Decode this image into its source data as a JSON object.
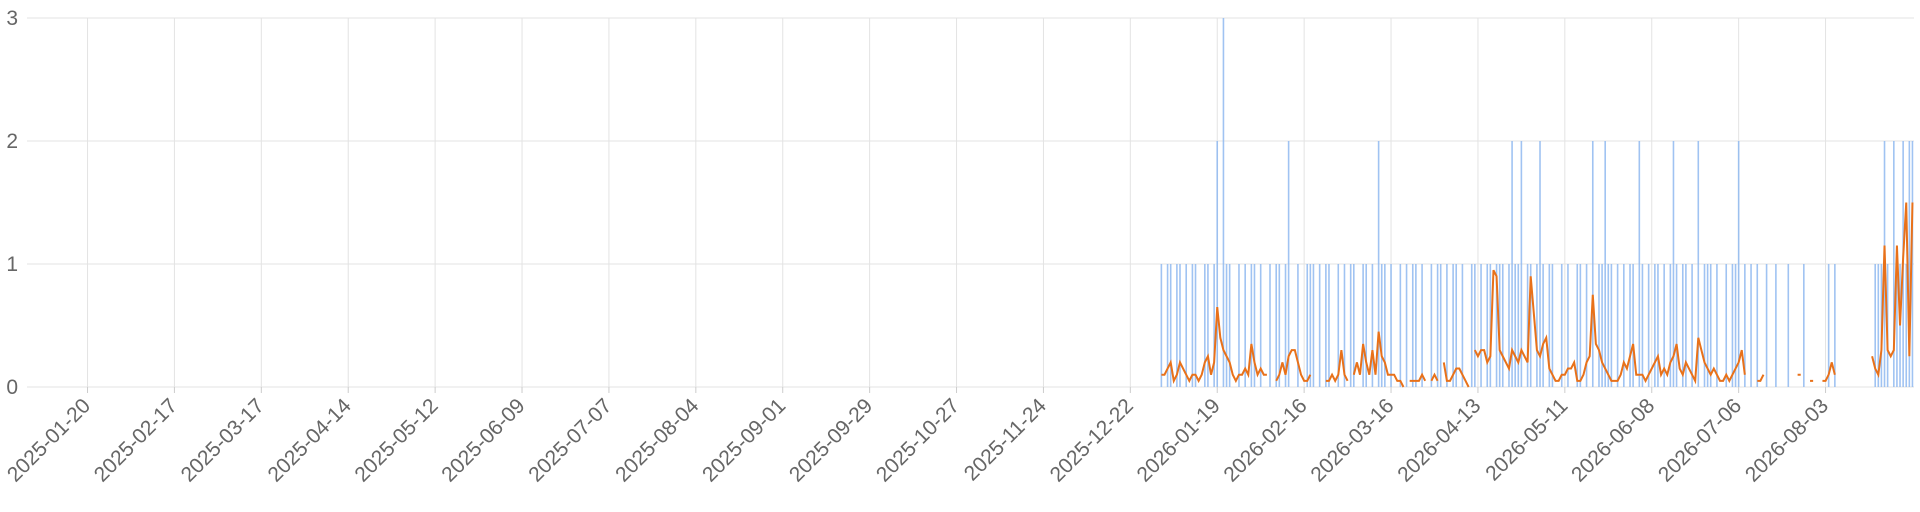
{
  "chart_data": {
    "type": "bar-line",
    "xlim": [
      "2025-01-01",
      "2026-08-31"
    ],
    "xticks": [
      "2025-01-20",
      "2025-02-17",
      "2025-03-17",
      "2025-04-14",
      "2025-05-12",
      "2025-06-09",
      "2025-07-07",
      "2025-08-04",
      "2025-09-01",
      "2025-09-29",
      "2025-10-27",
      "2025-11-24",
      "2025-12-22",
      "2026-01-19",
      "2026-02-16",
      "2026-03-16",
      "2026-04-13",
      "2026-05-11",
      "2026-06-08",
      "2026-07-06",
      "2026-08-03"
    ],
    "ylim": [
      0,
      3
    ],
    "yticks": [
      0,
      1,
      2,
      3
    ],
    "grid": true,
    "x": [
      "2025-12-30",
      "2025-12-31",
      "2026-01-01",
      "2026-01-02",
      "2026-01-03",
      "2026-01-04",
      "2026-01-05",
      "2026-01-06",
      "2026-01-07",
      "2026-01-08",
      "2026-01-09",
      "2026-01-10",
      "2026-01-11",
      "2026-01-12",
      "2026-01-13",
      "2026-01-14",
      "2026-01-15",
      "2026-01-16",
      "2026-01-17",
      "2026-01-18",
      "2026-01-19",
      "2026-01-20",
      "2026-01-21",
      "2026-01-22",
      "2026-01-23",
      "2026-01-24",
      "2026-01-25",
      "2026-01-26",
      "2026-01-27",
      "2026-01-28",
      "2026-01-29",
      "2026-01-30",
      "2026-01-31",
      "2026-02-01",
      "2026-02-02",
      "2026-02-03",
      "2026-02-04",
      "2026-02-05",
      "2026-02-06",
      "2026-02-07",
      "2026-02-08",
      "2026-02-09",
      "2026-02-10",
      "2026-02-11",
      "2026-02-12",
      "2026-02-13",
      "2026-02-14",
      "2026-02-15",
      "2026-02-16",
      "2026-02-17",
      "2026-02-18",
      "2026-02-19",
      "2026-02-20",
      "2026-02-21",
      "2026-02-22",
      "2026-02-23",
      "2026-02-24",
      "2026-02-25",
      "2026-02-26",
      "2026-02-27",
      "2026-02-28",
      "2026-03-01",
      "2026-03-02",
      "2026-03-03",
      "2026-03-04",
      "2026-03-05",
      "2026-03-06",
      "2026-03-07",
      "2026-03-08",
      "2026-03-09",
      "2026-03-10",
      "2026-03-11",
      "2026-03-12",
      "2026-03-13",
      "2026-03-14",
      "2026-03-15",
      "2026-03-16",
      "2026-03-17",
      "2026-03-18",
      "2026-03-19",
      "2026-03-20",
      "2026-03-21",
      "2026-03-22",
      "2026-03-23",
      "2026-03-24",
      "2026-03-25",
      "2026-03-26",
      "2026-03-27",
      "2026-03-28",
      "2026-03-29",
      "2026-03-30",
      "2026-03-31",
      "2026-04-01",
      "2026-04-02",
      "2026-04-03",
      "2026-04-04",
      "2026-04-05",
      "2026-04-06",
      "2026-04-07",
      "2026-04-08",
      "2026-04-09",
      "2026-04-10",
      "2026-04-11",
      "2026-04-12",
      "2026-04-13",
      "2026-04-14",
      "2026-04-15",
      "2026-04-16",
      "2026-04-17",
      "2026-04-18",
      "2026-04-19",
      "2026-04-20",
      "2026-04-21",
      "2026-04-22",
      "2026-04-23",
      "2026-04-24",
      "2026-04-25",
      "2026-04-26",
      "2026-04-27",
      "2026-04-28",
      "2026-04-29",
      "2026-04-30",
      "2026-05-01",
      "2026-05-02",
      "2026-05-03",
      "2026-05-04",
      "2026-05-05",
      "2026-05-06",
      "2026-05-07",
      "2026-05-08",
      "2026-05-09",
      "2026-05-10",
      "2026-05-11",
      "2026-05-12",
      "2026-05-13",
      "2026-05-14",
      "2026-05-15",
      "2026-05-16",
      "2026-05-17",
      "2026-05-18",
      "2026-05-19",
      "2026-05-20",
      "2026-05-21",
      "2026-05-22",
      "2026-05-23",
      "2026-05-24",
      "2026-05-25",
      "2026-05-26",
      "2026-05-27",
      "2026-05-28",
      "2026-05-29",
      "2026-05-30",
      "2026-05-31",
      "2026-06-01",
      "2026-06-02",
      "2026-06-03",
      "2026-06-04",
      "2026-06-05",
      "2026-06-06",
      "2026-06-07",
      "2026-06-08",
      "2026-06-09",
      "2026-06-10",
      "2026-06-11",
      "2026-06-12",
      "2026-06-13",
      "2026-06-14",
      "2026-06-15",
      "2026-06-16",
      "2026-06-17",
      "2026-06-18",
      "2026-06-19",
      "2026-06-20",
      "2026-06-21",
      "2026-06-22",
      "2026-06-23",
      "2026-06-24",
      "2026-06-25",
      "2026-06-26",
      "2026-06-27",
      "2026-06-28",
      "2026-06-29",
      "2026-06-30",
      "2026-07-01",
      "2026-07-02",
      "2026-07-03",
      "2026-07-04",
      "2026-07-05",
      "2026-07-06",
      "2026-07-07",
      "2026-07-08",
      "2026-07-09",
      "2026-07-10",
      "2026-07-11",
      "2026-07-12",
      "2026-07-13",
      "2026-07-14",
      "2026-07-15",
      "2026-07-16",
      "2026-07-17",
      "2026-07-18",
      "2026-07-19",
      "2026-07-20",
      "2026-07-21",
      "2026-07-22",
      "2026-07-23",
      "2026-07-24",
      "2026-07-25",
      "2026-07-26",
      "2026-07-27",
      "2026-07-28",
      "2026-07-29",
      "2026-07-30",
      "2026-07-31",
      "2026-08-01",
      "2026-08-02",
      "2026-08-03",
      "2026-08-04",
      "2026-08-05",
      "2026-08-06",
      "2026-08-07",
      "2026-08-08",
      "2026-08-09",
      "2026-08-10",
      "2026-08-11",
      "2026-08-12",
      "2026-08-13",
      "2026-08-14",
      "2026-08-15",
      "2026-08-16",
      "2026-08-17",
      "2026-08-18",
      "2026-08-19",
      "2026-08-20",
      "2026-08-21",
      "2026-08-22",
      "2026-08-23",
      "2026-08-24",
      "2026-08-25",
      "2026-08-26",
      "2026-08-27",
      "2026-08-28",
      "2026-08-29",
      "2026-08-30",
      "2026-08-31"
    ],
    "series": [
      {
        "type": "bar",
        "color": "#8fb8f0",
        "values": [
          0,
          0,
          1,
          0,
          1,
          1,
          0,
          1,
          1,
          0,
          1,
          0,
          1,
          1,
          0,
          0,
          1,
          1,
          0,
          1,
          2,
          0,
          3,
          1,
          1,
          0,
          0,
          1,
          0,
          1,
          0,
          1,
          1,
          0,
          1,
          0,
          0,
          1,
          0,
          1,
          1,
          0,
          1,
          2,
          0,
          0,
          1,
          0,
          0,
          1,
          1,
          1,
          0,
          1,
          0,
          1,
          1,
          0,
          0,
          1,
          0,
          1,
          0,
          1,
          1,
          0,
          0,
          1,
          1,
          0,
          1,
          0,
          2,
          1,
          1,
          0,
          1,
          0,
          0,
          1,
          0,
          1,
          0,
          1,
          1,
          0,
          1,
          0,
          0,
          1,
          0,
          1,
          1,
          0,
          1,
          0,
          1,
          1,
          0,
          1,
          0,
          0,
          1,
          1,
          0,
          1,
          0,
          1,
          1,
          0,
          1,
          1,
          1,
          0,
          1,
          2,
          1,
          1,
          2,
          0,
          1,
          1,
          0,
          1,
          2,
          1,
          0,
          1,
          1,
          0,
          0,
          1,
          0,
          1,
          0,
          0,
          1,
          1,
          0,
          1,
          0,
          2,
          0,
          1,
          1,
          2,
          1,
          1,
          0,
          1,
          0,
          1,
          0,
          1,
          1,
          0,
          2,
          1,
          0,
          1,
          0,
          1,
          1,
          0,
          1,
          0,
          1,
          2,
          1,
          0,
          1,
          1,
          0,
          1,
          0,
          2,
          0,
          1,
          1,
          1,
          0,
          1,
          0,
          0,
          1,
          0,
          1,
          1,
          2,
          0,
          1,
          0,
          1,
          0,
          1,
          0,
          0,
          1,
          0,
          0,
          1,
          0,
          0,
          0,
          1,
          0,
          0,
          0,
          0,
          1,
          0,
          0,
          0,
          0,
          0,
          0,
          0,
          1,
          0,
          1,
          0,
          0,
          0,
          0,
          0,
          0,
          0,
          0,
          0,
          0,
          0,
          0,
          1,
          1,
          1,
          2,
          1,
          0,
          2,
          1,
          1,
          2,
          1,
          2,
          2
        ]
      },
      {
        "type": "line",
        "color": "#e8711a",
        "values": [
          null,
          null,
          0.1,
          0.1,
          0.15,
          0.2,
          0.05,
          0.1,
          0.2,
          0.15,
          0.1,
          0.05,
          0.1,
          0.1,
          0.05,
          0.1,
          0.2,
          0.25,
          0.1,
          0.2,
          0.65,
          0.4,
          0.3,
          0.25,
          0.2,
          0.1,
          0.05,
          0.1,
          0.1,
          0.15,
          0.1,
          0.35,
          0.2,
          0.1,
          0.15,
          0.1,
          0.1,
          null,
          null,
          0.05,
          0.1,
          0.2,
          0.1,
          0.25,
          0.3,
          0.3,
          0.2,
          0.1,
          0.05,
          0.05,
          0.1,
          null,
          0.3,
          null,
          null,
          0.05,
          0.05,
          0.1,
          0.05,
          0.1,
          0.3,
          0.1,
          0.05,
          null,
          0.1,
          0.2,
          0.1,
          0.35,
          0.2,
          0.1,
          0.3,
          0.1,
          0.45,
          0.25,
          0.2,
          0.1,
          0.1,
          0.1,
          0.05,
          0.05,
          0,
          null,
          0.05,
          0.05,
          0.05,
          0.05,
          0.1,
          0.05,
          null,
          0.05,
          0.1,
          0.05,
          null,
          0.2,
          0.05,
          0.05,
          0.1,
          0.15,
          0.15,
          0.1,
          0.05,
          0,
          null,
          0.3,
          0.25,
          0.3,
          0.3,
          0.2,
          0.25,
          0.95,
          0.9,
          0.3,
          0.25,
          0.2,
          0.15,
          0.3,
          0.25,
          0.2,
          0.3,
          0.25,
          0.2,
          0.9,
          0.6,
          0.3,
          0.25,
          0.35,
          0.4,
          0.15,
          0.1,
          0.05,
          0.05,
          0.1,
          0.1,
          0.15,
          0.15,
          0.2,
          0.05,
          0.05,
          0.1,
          0.2,
          0.25,
          0.75,
          0.35,
          0.3,
          0.2,
          0.15,
          0.1,
          0.05,
          0.05,
          0.05,
          0.1,
          0.2,
          0.15,
          0.25,
          0.35,
          0.1,
          0.1,
          0.1,
          0.05,
          0.1,
          0.15,
          0.2,
          0.25,
          0.1,
          0.15,
          0.1,
          0.2,
          0.25,
          0.35,
          0.15,
          0.1,
          0.2,
          0.15,
          0.1,
          0.05,
          0.4,
          0.3,
          0.2,
          0.15,
          0.1,
          0.15,
          0.1,
          0.05,
          0.05,
          0.1,
          0.05,
          0.1,
          0.15,
          0.2,
          0.3,
          0.1,
          null,
          0.05,
          null,
          0.05,
          0.05,
          0.1,
          null,
          0.05,
          null,
          0.1,
          null,
          null,
          0.1,
          null,
          null,
          null,
          0.1,
          0.1,
          null,
          null,
          0.05,
          0.05,
          null,
          null,
          0.05,
          0.05,
          0.1,
          0.2,
          0.1,
          null,
          null,
          null,
          null,
          null,
          null,
          null,
          null,
          null,
          null,
          null,
          0.25,
          0.15,
          0.1,
          0.3,
          1.15,
          0.3,
          0.25,
          0.3,
          1.15,
          0.5,
          1.05,
          1.5,
          0.25,
          1.5
        ]
      }
    ]
  }
}
